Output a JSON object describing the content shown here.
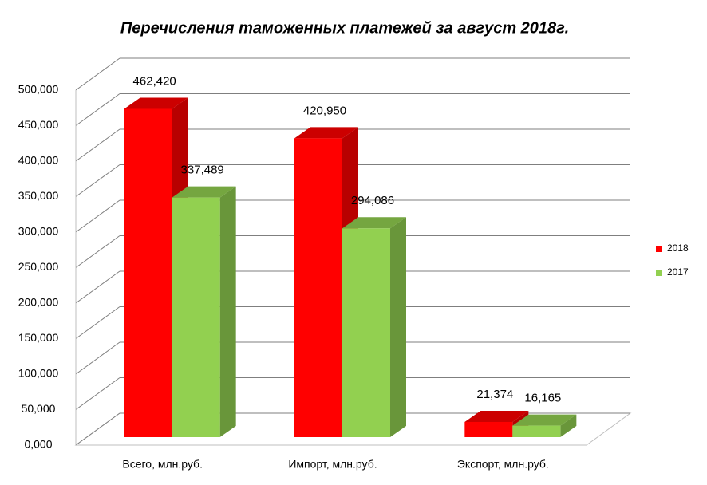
{
  "chart_data": {
    "type": "bar3d",
    "title": "Перечисления таможенных платежей за август 2018г.",
    "categories": [
      "Всего, млн.руб.",
      "Импорт, млн.руб.",
      "Экспорт, млн.руб."
    ],
    "series": [
      {
        "name": "2018",
        "color": "#ff0000",
        "values": [
          462420,
          420950,
          21374
        ],
        "value_labels": [
          "462,420",
          "420,950",
          "21,374"
        ]
      },
      {
        "name": "2017",
        "color": "#92d050",
        "values": [
          337489,
          294086,
          16165
        ],
        "value_labels": [
          "337,489",
          "294,086",
          "16,165"
        ]
      }
    ],
    "ylim": [
      0,
      500000
    ],
    "yticks": [
      {
        "value": 0,
        "label": "0,000"
      },
      {
        "value": 50000,
        "label": "50,000"
      },
      {
        "value": 100000,
        "label": "100,000"
      },
      {
        "value": 150000,
        "label": "150,000"
      },
      {
        "value": 200000,
        "label": "200,000"
      },
      {
        "value": 250000,
        "label": "250,000"
      },
      {
        "value": 300000,
        "label": "300,000"
      },
      {
        "value": 350000,
        "label": "350,000"
      },
      {
        "value": 400000,
        "label": "400,000"
      },
      {
        "value": 450000,
        "label": "450,000"
      },
      {
        "value": 500000,
        "label": "500,000"
      }
    ],
    "grid": true,
    "legend": "right"
  }
}
